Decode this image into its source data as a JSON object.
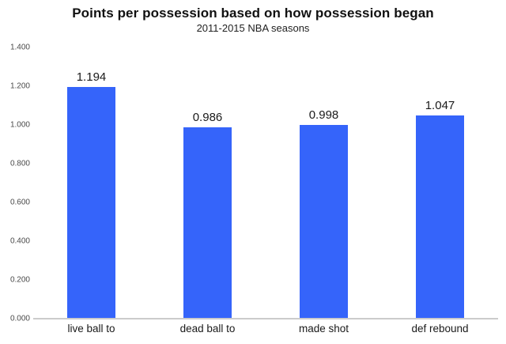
{
  "chart_data": {
    "type": "bar",
    "title": "Points per possession based on how possession began",
    "subtitle": "2011-2015 NBA seasons",
    "categories": [
      "live ball to",
      "dead ball to",
      "made shot",
      "def rebound"
    ],
    "values": [
      1.194,
      0.986,
      0.998,
      1.047
    ],
    "value_labels": [
      "1.194",
      "0.986",
      "0.998",
      "1.047"
    ],
    "y_ticks": [
      "0.000",
      "0.200",
      "0.400",
      "0.600",
      "0.800",
      "1.000",
      "1.200",
      "1.400"
    ],
    "ylim": [
      0,
      1.4
    ],
    "xlabel": "",
    "ylabel": "",
    "grid": false,
    "legend": "none",
    "colors": {
      "bar": "#3564fa",
      "axis_line": "#cccccc",
      "tick_text": "#4a4a4a",
      "value_text": "#1a1a1a",
      "category_text": "#1a1a1a"
    }
  }
}
